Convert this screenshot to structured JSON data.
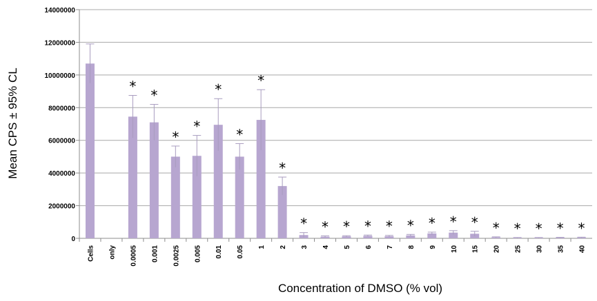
{
  "chart_data": {
    "type": "bar",
    "title": "",
    "xlabel": "Concentration of DMSO (% vol)",
    "ylabel": "Mean CPS ± 95% CL",
    "ylim": [
      0,
      14000000
    ],
    "yticks": [
      "0",
      "2000000",
      "4000000",
      "6000000",
      "8000000",
      "10000000",
      "12000000",
      "14000000"
    ],
    "grid": true,
    "bar_color": "#b7a6d0",
    "error_color": "#a89cbf",
    "categories": [
      "Cells",
      "only",
      "0.0005",
      "0.001",
      "0.0025",
      "0.005",
      "0.01",
      "0.05",
      "1",
      "2",
      "3",
      "4",
      "5",
      "6",
      "7",
      "8",
      "9",
      "10",
      "15",
      "20",
      "25",
      "30",
      "35",
      "40"
    ],
    "values": [
      10700000,
      0,
      7450000,
      7100000,
      5000000,
      5050000,
      6950000,
      5000000,
      7250000,
      3200000,
      200000,
      100000,
      120000,
      150000,
      130000,
      180000,
      300000,
      350000,
      280000,
      60000,
      30000,
      30000,
      40000,
      50000
    ],
    "errors": [
      1200000,
      0,
      1300000,
      1100000,
      650000,
      1250000,
      1600000,
      800000,
      1850000,
      550000,
      150000,
      50000,
      40000,
      50000,
      50000,
      60000,
      80000,
      120000,
      150000,
      30000,
      20000,
      20000,
      20000,
      20000
    ],
    "significant": [
      false,
      false,
      true,
      true,
      true,
      true,
      true,
      true,
      true,
      true,
      true,
      true,
      true,
      true,
      true,
      true,
      true,
      true,
      true,
      true,
      true,
      true,
      true,
      true
    ],
    "significance_marker": "*"
  }
}
